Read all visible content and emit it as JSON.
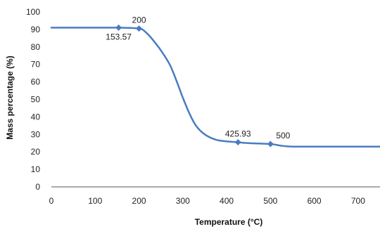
{
  "chart_data": {
    "type": "line",
    "xlabel": "Temperature (°C)",
    "ylabel": "Mass percentage  (%)",
    "xlim": [
      0,
      750
    ],
    "ylim": [
      0,
      100
    ],
    "x_ticks": [
      "0",
      "100",
      "200",
      "300",
      "400",
      "500",
      "600",
      "700"
    ],
    "y_ticks": [
      "0",
      "10",
      "20",
      "30",
      "40",
      "50",
      "60",
      "70",
      "80",
      "90",
      "100"
    ],
    "grid": false,
    "legend": "none",
    "line_color": "#4a7dc0",
    "series": [
      {
        "x": [
          0,
          100,
          153.57,
          200,
          215,
          230,
          250,
          270,
          285,
          300,
          315,
          330,
          350,
          375,
          400,
          425.93,
          450,
          500,
          525,
          550,
          600,
          700,
          750
        ],
        "y": [
          91,
          91,
          91,
          90.5,
          88.5,
          84.5,
          78,
          70,
          61,
          51,
          42,
          35,
          30,
          27,
          26,
          25.5,
          25,
          24.5,
          23.5,
          23,
          23,
          23,
          23
        ]
      }
    ],
    "markers": [
      {
        "x": 153.57,
        "y": 91,
        "label": "153.57",
        "position": "below"
      },
      {
        "x": 200,
        "y": 90.5,
        "label": "200",
        "position": "above"
      },
      {
        "x": 425.93,
        "y": 25.5,
        "label": "425.93",
        "position": "above"
      },
      {
        "x": 500,
        "y": 24.5,
        "label": "500",
        "position": "above-right"
      }
    ]
  }
}
